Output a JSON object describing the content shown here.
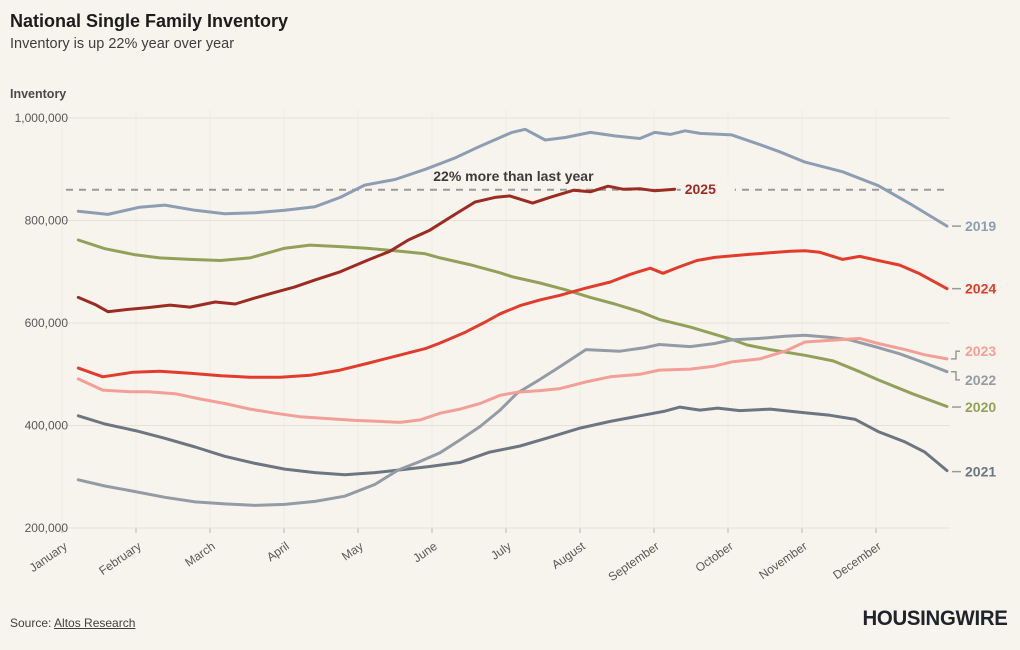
{
  "header": {
    "title": "National Single Family Inventory",
    "subtitle": "Inventory is up 22% year over year"
  },
  "footer": {
    "source_label": "Source:",
    "source_link": "Altos Research",
    "logo": "HOUSINGWIRE"
  },
  "chart_data": {
    "type": "line",
    "y_axis_title": "Inventory",
    "x_unit": "month (0 = Jan 1, 12 = Dec 31)",
    "x_tick_labels": [
      "January",
      "February",
      "March",
      "April",
      "May",
      "June",
      "July",
      "August",
      "September",
      "October",
      "November",
      "December"
    ],
    "y_ticks": [
      200000,
      400000,
      600000,
      800000,
      1000000
    ],
    "y_tick_labels": [
      "200,000",
      "400,000",
      "600,000",
      "800,000",
      "1,000,000"
    ],
    "ylim": [
      200000,
      1000000
    ],
    "grid": "horizontal + faint vertical month lines",
    "legend_position": "direct labels at right edge",
    "colors": {
      "background": "#f7f4ed",
      "grid_h": "#e6e2d8",
      "grid_v": "#eeebe2",
      "tick": "#b9b5ab",
      "connector": "#9a9a9a",
      "axis_text": "#585858"
    },
    "reference_line": {
      "value": 860000,
      "style": "dashed",
      "color": "#9a9a9a",
      "annotation": "22% more than last year",
      "annotation_x_month": 6.1
    },
    "series": [
      {
        "name": "2019",
        "color": "#8d9eb3",
        "label": {
          "text": "2019",
          "placement": "right",
          "connector": "dash",
          "anchor_value": 789000
        },
        "points": [
          [
            0.22,
            818000
          ],
          [
            0.62,
            812000
          ],
          [
            1.05,
            826000
          ],
          [
            1.39,
            830000
          ],
          [
            1.8,
            820000
          ],
          [
            2.2,
            813000
          ],
          [
            2.61,
            815000
          ],
          [
            3.01,
            820000
          ],
          [
            3.42,
            827000
          ],
          [
            3.76,
            845000
          ],
          [
            4.09,
            869000
          ],
          [
            4.5,
            880000
          ],
          [
            4.91,
            900000
          ],
          [
            5.31,
            922000
          ],
          [
            5.65,
            945000
          ],
          [
            5.92,
            962000
          ],
          [
            6.08,
            972000
          ],
          [
            6.26,
            978000
          ],
          [
            6.53,
            957000
          ],
          [
            6.8,
            962000
          ],
          [
            7.14,
            972000
          ],
          [
            7.47,
            965000
          ],
          [
            7.81,
            960000
          ],
          [
            8.01,
            972000
          ],
          [
            8.22,
            968000
          ],
          [
            8.42,
            975000
          ],
          [
            8.62,
            970000
          ],
          [
            9.05,
            967000
          ],
          [
            9.43,
            948000
          ],
          [
            9.7,
            934000
          ],
          [
            10.04,
            914000
          ],
          [
            10.55,
            895000
          ],
          [
            11.03,
            868000
          ],
          [
            11.49,
            830000
          ],
          [
            11.96,
            789000
          ]
        ]
      },
      {
        "name": "2020",
        "color": "#92a159",
        "label": {
          "text": "2020",
          "placement": "right",
          "connector": "dash",
          "anchor_value": 436000
        },
        "points": [
          [
            0.22,
            762000
          ],
          [
            0.58,
            745000
          ],
          [
            0.99,
            733000
          ],
          [
            1.32,
            727000
          ],
          [
            1.73,
            724000
          ],
          [
            2.14,
            722000
          ],
          [
            2.54,
            727000
          ],
          [
            3.01,
            746000
          ],
          [
            3.35,
            752000
          ],
          [
            3.76,
            749000
          ],
          [
            4.12,
            746000
          ],
          [
            4.57,
            740000
          ],
          [
            4.91,
            735000
          ],
          [
            5.11,
            727000
          ],
          [
            5.51,
            714000
          ],
          [
            5.92,
            698000
          ],
          [
            6.09,
            690000
          ],
          [
            6.46,
            678000
          ],
          [
            6.8,
            665000
          ],
          [
            7.14,
            650000
          ],
          [
            7.47,
            637000
          ],
          [
            7.81,
            622000
          ],
          [
            8.07,
            607000
          ],
          [
            8.49,
            592000
          ],
          [
            8.82,
            578000
          ],
          [
            9.05,
            568000
          ],
          [
            9.26,
            557000
          ],
          [
            9.57,
            548000
          ],
          [
            10.04,
            537000
          ],
          [
            10.42,
            526000
          ],
          [
            10.78,
            505000
          ],
          [
            11.03,
            489000
          ],
          [
            11.49,
            462000
          ],
          [
            11.96,
            437000
          ]
        ]
      },
      {
        "name": "2021",
        "color": "#6c7680",
        "label": {
          "text": "2021",
          "placement": "right",
          "connector": "dash",
          "anchor_value": 310000
        },
        "points": [
          [
            0.22,
            419000
          ],
          [
            0.58,
            403000
          ],
          [
            0.99,
            390000
          ],
          [
            1.39,
            375000
          ],
          [
            1.8,
            358000
          ],
          [
            2.2,
            340000
          ],
          [
            2.61,
            326000
          ],
          [
            3.01,
            315000
          ],
          [
            3.42,
            308000
          ],
          [
            3.82,
            304000
          ],
          [
            4.23,
            308000
          ],
          [
            4.54,
            313000
          ],
          [
            4.97,
            320000
          ],
          [
            5.38,
            328000
          ],
          [
            5.78,
            348000
          ],
          [
            6.19,
            360000
          ],
          [
            6.59,
            377000
          ],
          [
            7.0,
            395000
          ],
          [
            7.41,
            408000
          ],
          [
            7.81,
            419000
          ],
          [
            8.15,
            428000
          ],
          [
            8.35,
            436000
          ],
          [
            8.62,
            430000
          ],
          [
            8.86,
            434000
          ],
          [
            9.16,
            429000
          ],
          [
            9.57,
            432000
          ],
          [
            9.97,
            426000
          ],
          [
            10.38,
            420000
          ],
          [
            10.72,
            412000
          ],
          [
            11.03,
            388000
          ],
          [
            11.39,
            368000
          ],
          [
            11.66,
            348000
          ],
          [
            11.96,
            312000
          ]
        ]
      },
      {
        "name": "2022",
        "color": "#939ca5",
        "label": {
          "text": "2022",
          "placement": "right",
          "connector": "elbow",
          "anchor_value": 489000
        },
        "points": [
          [
            0.22,
            294000
          ],
          [
            0.58,
            282000
          ],
          [
            0.99,
            271000
          ],
          [
            1.39,
            260000
          ],
          [
            1.8,
            251000
          ],
          [
            2.2,
            247000
          ],
          [
            2.61,
            244000
          ],
          [
            3.01,
            246000
          ],
          [
            3.42,
            252000
          ],
          [
            3.82,
            262000
          ],
          [
            4.23,
            285000
          ],
          [
            4.54,
            313000
          ],
          [
            4.84,
            330000
          ],
          [
            5.11,
            347000
          ],
          [
            5.38,
            372000
          ],
          [
            5.65,
            398000
          ],
          [
            5.92,
            430000
          ],
          [
            6.15,
            463000
          ],
          [
            6.46,
            490000
          ],
          [
            6.73,
            515000
          ],
          [
            7.08,
            548000
          ],
          [
            7.54,
            545000
          ],
          [
            7.88,
            552000
          ],
          [
            8.07,
            558000
          ],
          [
            8.49,
            554000
          ],
          [
            8.82,
            560000
          ],
          [
            9.05,
            567000
          ],
          [
            9.43,
            570000
          ],
          [
            9.77,
            574000
          ],
          [
            10.04,
            576000
          ],
          [
            10.38,
            572000
          ],
          [
            10.65,
            567000
          ],
          [
            11.03,
            552000
          ],
          [
            11.32,
            540000
          ],
          [
            11.66,
            522000
          ],
          [
            11.96,
            505000
          ]
        ]
      },
      {
        "name": "2023",
        "color": "#f49e98",
        "label": {
          "text": "2023",
          "placement": "right",
          "connector": "elbow",
          "anchor_value": 545000
        },
        "points": [
          [
            0.22,
            491000
          ],
          [
            0.55,
            469000
          ],
          [
            0.92,
            466000
          ],
          [
            1.16,
            466000
          ],
          [
            1.53,
            462000
          ],
          [
            1.86,
            452000
          ],
          [
            2.2,
            443000
          ],
          [
            2.54,
            432000
          ],
          [
            2.88,
            424000
          ],
          [
            3.22,
            417000
          ],
          [
            3.62,
            413000
          ],
          [
            3.96,
            410000
          ],
          [
            4.3,
            408000
          ],
          [
            4.57,
            406000
          ],
          [
            4.84,
            411000
          ],
          [
            5.11,
            424000
          ],
          [
            5.38,
            432000
          ],
          [
            5.65,
            443000
          ],
          [
            5.92,
            459000
          ],
          [
            6.15,
            465000
          ],
          [
            6.46,
            468000
          ],
          [
            6.73,
            472000
          ],
          [
            7.08,
            485000
          ],
          [
            7.41,
            495000
          ],
          [
            7.81,
            500000
          ],
          [
            8.07,
            508000
          ],
          [
            8.49,
            510000
          ],
          [
            8.82,
            516000
          ],
          [
            9.05,
            524000
          ],
          [
            9.43,
            530000
          ],
          [
            9.77,
            545000
          ],
          [
            10.04,
            563000
          ],
          [
            10.38,
            566000
          ],
          [
            10.78,
            570000
          ],
          [
            11.03,
            560000
          ],
          [
            11.39,
            548000
          ],
          [
            11.66,
            538000
          ],
          [
            11.96,
            530000
          ]
        ]
      },
      {
        "name": "2024",
        "color": "#e23c2d",
        "label": {
          "text": "2024",
          "placement": "right",
          "connector": "dash",
          "anchor_value": 667000
        },
        "points": [
          [
            0.22,
            512000
          ],
          [
            0.55,
            495000
          ],
          [
            0.96,
            504000
          ],
          [
            1.32,
            506000
          ],
          [
            1.73,
            502000
          ],
          [
            2.15,
            497000
          ],
          [
            2.54,
            494000
          ],
          [
            2.95,
            494000
          ],
          [
            3.35,
            498000
          ],
          [
            3.76,
            508000
          ],
          [
            4.12,
            521000
          ],
          [
            4.5,
            535000
          ],
          [
            4.91,
            550000
          ],
          [
            5.11,
            561000
          ],
          [
            5.45,
            582000
          ],
          [
            5.72,
            602000
          ],
          [
            5.92,
            618000
          ],
          [
            6.19,
            634000
          ],
          [
            6.46,
            645000
          ],
          [
            6.73,
            654000
          ],
          [
            7.08,
            668000
          ],
          [
            7.41,
            680000
          ],
          [
            7.68,
            695000
          ],
          [
            7.95,
            707000
          ],
          [
            8.12,
            697000
          ],
          [
            8.35,
            710000
          ],
          [
            8.58,
            722000
          ],
          [
            8.82,
            728000
          ],
          [
            9.05,
            731000
          ],
          [
            9.3,
            734000
          ],
          [
            9.57,
            737000
          ],
          [
            9.84,
            740000
          ],
          [
            10.04,
            741000
          ],
          [
            10.24,
            738000
          ],
          [
            10.55,
            724000
          ],
          [
            10.78,
            730000
          ],
          [
            11.03,
            722000
          ],
          [
            11.32,
            713000
          ],
          [
            11.59,
            696000
          ],
          [
            11.96,
            667000
          ]
        ]
      },
      {
        "name": "2025",
        "color": "#9c2b23",
        "label": {
          "text": "2025",
          "placement": "inline",
          "anchor_value": 861000
        },
        "points": [
          [
            0.22,
            650000
          ],
          [
            0.45,
            636000
          ],
          [
            0.62,
            622000
          ],
          [
            0.85,
            626000
          ],
          [
            1.16,
            630000
          ],
          [
            1.46,
            635000
          ],
          [
            1.73,
            631000
          ],
          [
            2.07,
            641000
          ],
          [
            2.34,
            637000
          ],
          [
            2.61,
            649000
          ],
          [
            2.88,
            660000
          ],
          [
            3.14,
            670000
          ],
          [
            3.42,
            684000
          ],
          [
            3.76,
            700000
          ],
          [
            4.12,
            722000
          ],
          [
            4.43,
            740000
          ],
          [
            4.68,
            762000
          ],
          [
            4.97,
            781000
          ],
          [
            5.31,
            812000
          ],
          [
            5.58,
            836000
          ],
          [
            5.85,
            845000
          ],
          [
            6.05,
            848000
          ],
          [
            6.36,
            834000
          ],
          [
            6.59,
            845000
          ],
          [
            6.91,
            859000
          ],
          [
            7.14,
            856000
          ],
          [
            7.38,
            867000
          ],
          [
            7.58,
            861000
          ],
          [
            7.81,
            862000
          ],
          [
            8.01,
            858000
          ],
          [
            8.28,
            861000
          ]
        ]
      }
    ]
  }
}
